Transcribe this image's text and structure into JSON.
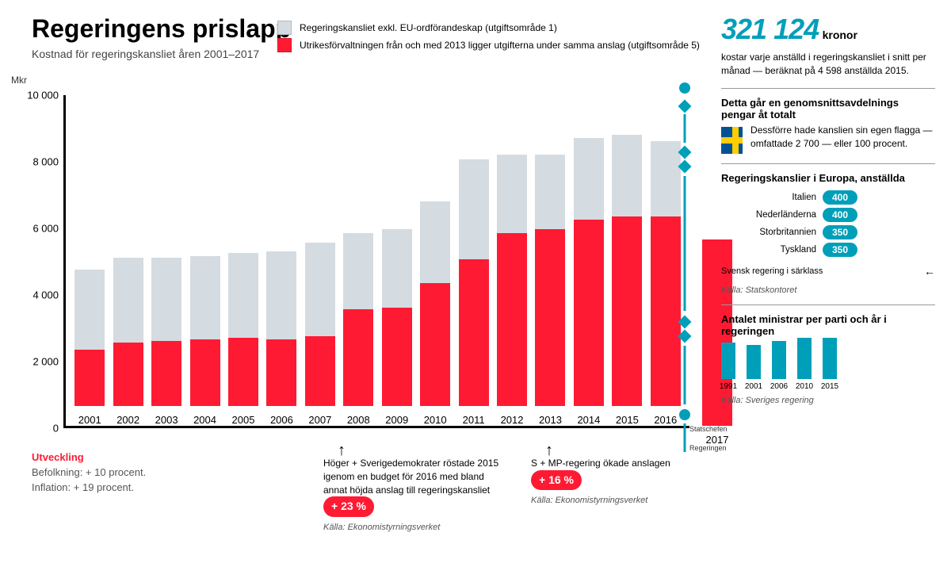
{
  "colors": {
    "primary_red": "#ff1a33",
    "accent_teal": "#009fb9",
    "light_gray": "#d4dbe1",
    "text": "#111111",
    "flag_blue": "#005293",
    "flag_yellow": "#ffcd00"
  },
  "title": {
    "text": "Regeringens prislapp",
    "fontsize": 32
  },
  "subtitle": {
    "text": "Kostnad för regeringskansliet åren 2001–2017",
    "fontsize": 14
  },
  "legend": {
    "a_label": "Regeringskansliet exkl. EU-ordförandeskap (utgiftsområde 1)",
    "a_color": "#d4dbe1",
    "b_label": "Utrikesförvaltningen från och med 2013 ligger utgifterna under samma anslag (utgiftsområde 5)",
    "b_color": "#ff1a33"
  },
  "chart": {
    "type": "stacked-bar",
    "y_label": "Mkr",
    "ymax": 10000,
    "yticks": [
      0,
      2000,
      4000,
      6000,
      8000,
      10000
    ],
    "categories": [
      "2001",
      "2002",
      "2003",
      "2004",
      "2005",
      "2006",
      "2007",
      "2008",
      "2009",
      "2010",
      "2011",
      "2012",
      "2013",
      "2014",
      "2015",
      "2016"
    ],
    "series": {
      "bottom": {
        "color": "#ff1a33",
        "values": [
          1700,
          1900,
          1950,
          2000,
          2050,
          2000,
          2100,
          2900,
          2950,
          3700,
          4400,
          5200,
          5300,
          5600,
          5700,
          5700
        ]
      },
      "top": {
        "color": "#d4dbe1",
        "values": [
          2400,
          2550,
          2500,
          2500,
          2550,
          2650,
          2800,
          2300,
          2350,
          2450,
          3000,
          2350,
          2250,
          2450,
          2450,
          2250
        ]
      }
    },
    "extra_bar": {
      "label": "2017",
      "value": 5600,
      "color": "#ff1a33"
    }
  },
  "note_left": {
    "heading_color": "#ff1a33",
    "heading": "Utveckling",
    "line1": "Befolkning: + 10 procent.",
    "line2": "Inflation: + 19 procent."
  },
  "callout1": {
    "text": "Höger + Sverigedemokrater röstade 2015 igenom en budget för 2016 med bland annat höjda anslag till regeringskansliet",
    "pill": "+ 23 %",
    "pill_color": "#ff1a33",
    "source": "Källa: Ekonomistyrningsverket"
  },
  "callout2": {
    "text": "S + MP-regering ökade anslagen",
    "pill": "+ 16 %",
    "pill_color": "#ff1a33",
    "source": "Källa: Ekonomistyrningsverket"
  },
  "sidebar": {
    "headline_number": "321 124",
    "headline_unit": "kronor",
    "headline_color": "#009fb9",
    "headline_desc": "kostar varje anställd i regeringskansliet i snitt per månad — beräknat på 4 598 anställda 2015.",
    "block1_heading": "Detta går en genomsnittsavdelnings pengar åt totalt",
    "flag_bg": "#005293",
    "flag_cross": "#ffcd00",
    "flag_caption": "Dessförre hade kanslien sin egen flagga — omfattade 2 700 — eller 100 procent.",
    "rank_heading": "Regeringskanslier i Europa, anställda",
    "rank_color": "#009fb9",
    "rank": [
      {
        "label": "Italien",
        "value": 400
      },
      {
        "label": "Nederländerna",
        "value": 400
      },
      {
        "label": "Storbritannien",
        "value": 350
      },
      {
        "label": "Tyskland",
        "value": 350
      }
    ],
    "rank_max": 500,
    "rank_source": "Källa: Statskontoret",
    "break_label": "Svensk regering i särklass",
    "ministers_heading": "Antalet ministrar per parti och år i regeringen",
    "ministers_y": [
      0,
      5,
      10,
      15,
      20,
      25
    ],
    "ministers_color": "#009fb9",
    "ministers": [
      {
        "year": "1991",
        "value": 21
      },
      {
        "year": "2001",
        "value": 20
      },
      {
        "year": "2006",
        "value": 22
      },
      {
        "year": "2010",
        "value": 24
      },
      {
        "year": "2015",
        "value": 24
      }
    ],
    "ministers_source": "Källa: Sveriges regering",
    "ministers_max": 25
  },
  "timeline": {
    "caption1": "Statschefen",
    "caption2": "Regeringen"
  }
}
